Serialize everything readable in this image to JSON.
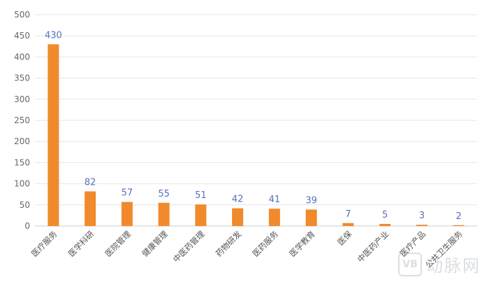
{
  "chart_data": {
    "type": "bar",
    "title": "",
    "xlabel": "",
    "ylabel": "",
    "ylim": [
      0,
      500
    ],
    "yticks": [
      0,
      50,
      100,
      150,
      200,
      250,
      300,
      350,
      400,
      450,
      500
    ],
    "grid": true,
    "bar_color": "#f08a2c",
    "label_color": "#5572b8",
    "categories": [
      "医疗服务",
      "医学科研",
      "医院管理",
      "健康管理",
      "中医药管理",
      "药物研发",
      "医药服务",
      "医学教育",
      "医保",
      "中医药产业",
      "医疗产品",
      "公共卫生服务"
    ],
    "values": [
      430,
      82,
      57,
      55,
      51,
      42,
      41,
      39,
      7,
      5,
      3,
      2
    ]
  },
  "watermark": {
    "logo_text": "VB",
    "text": "动脉网",
    "icon": "vb-logo-icon"
  }
}
